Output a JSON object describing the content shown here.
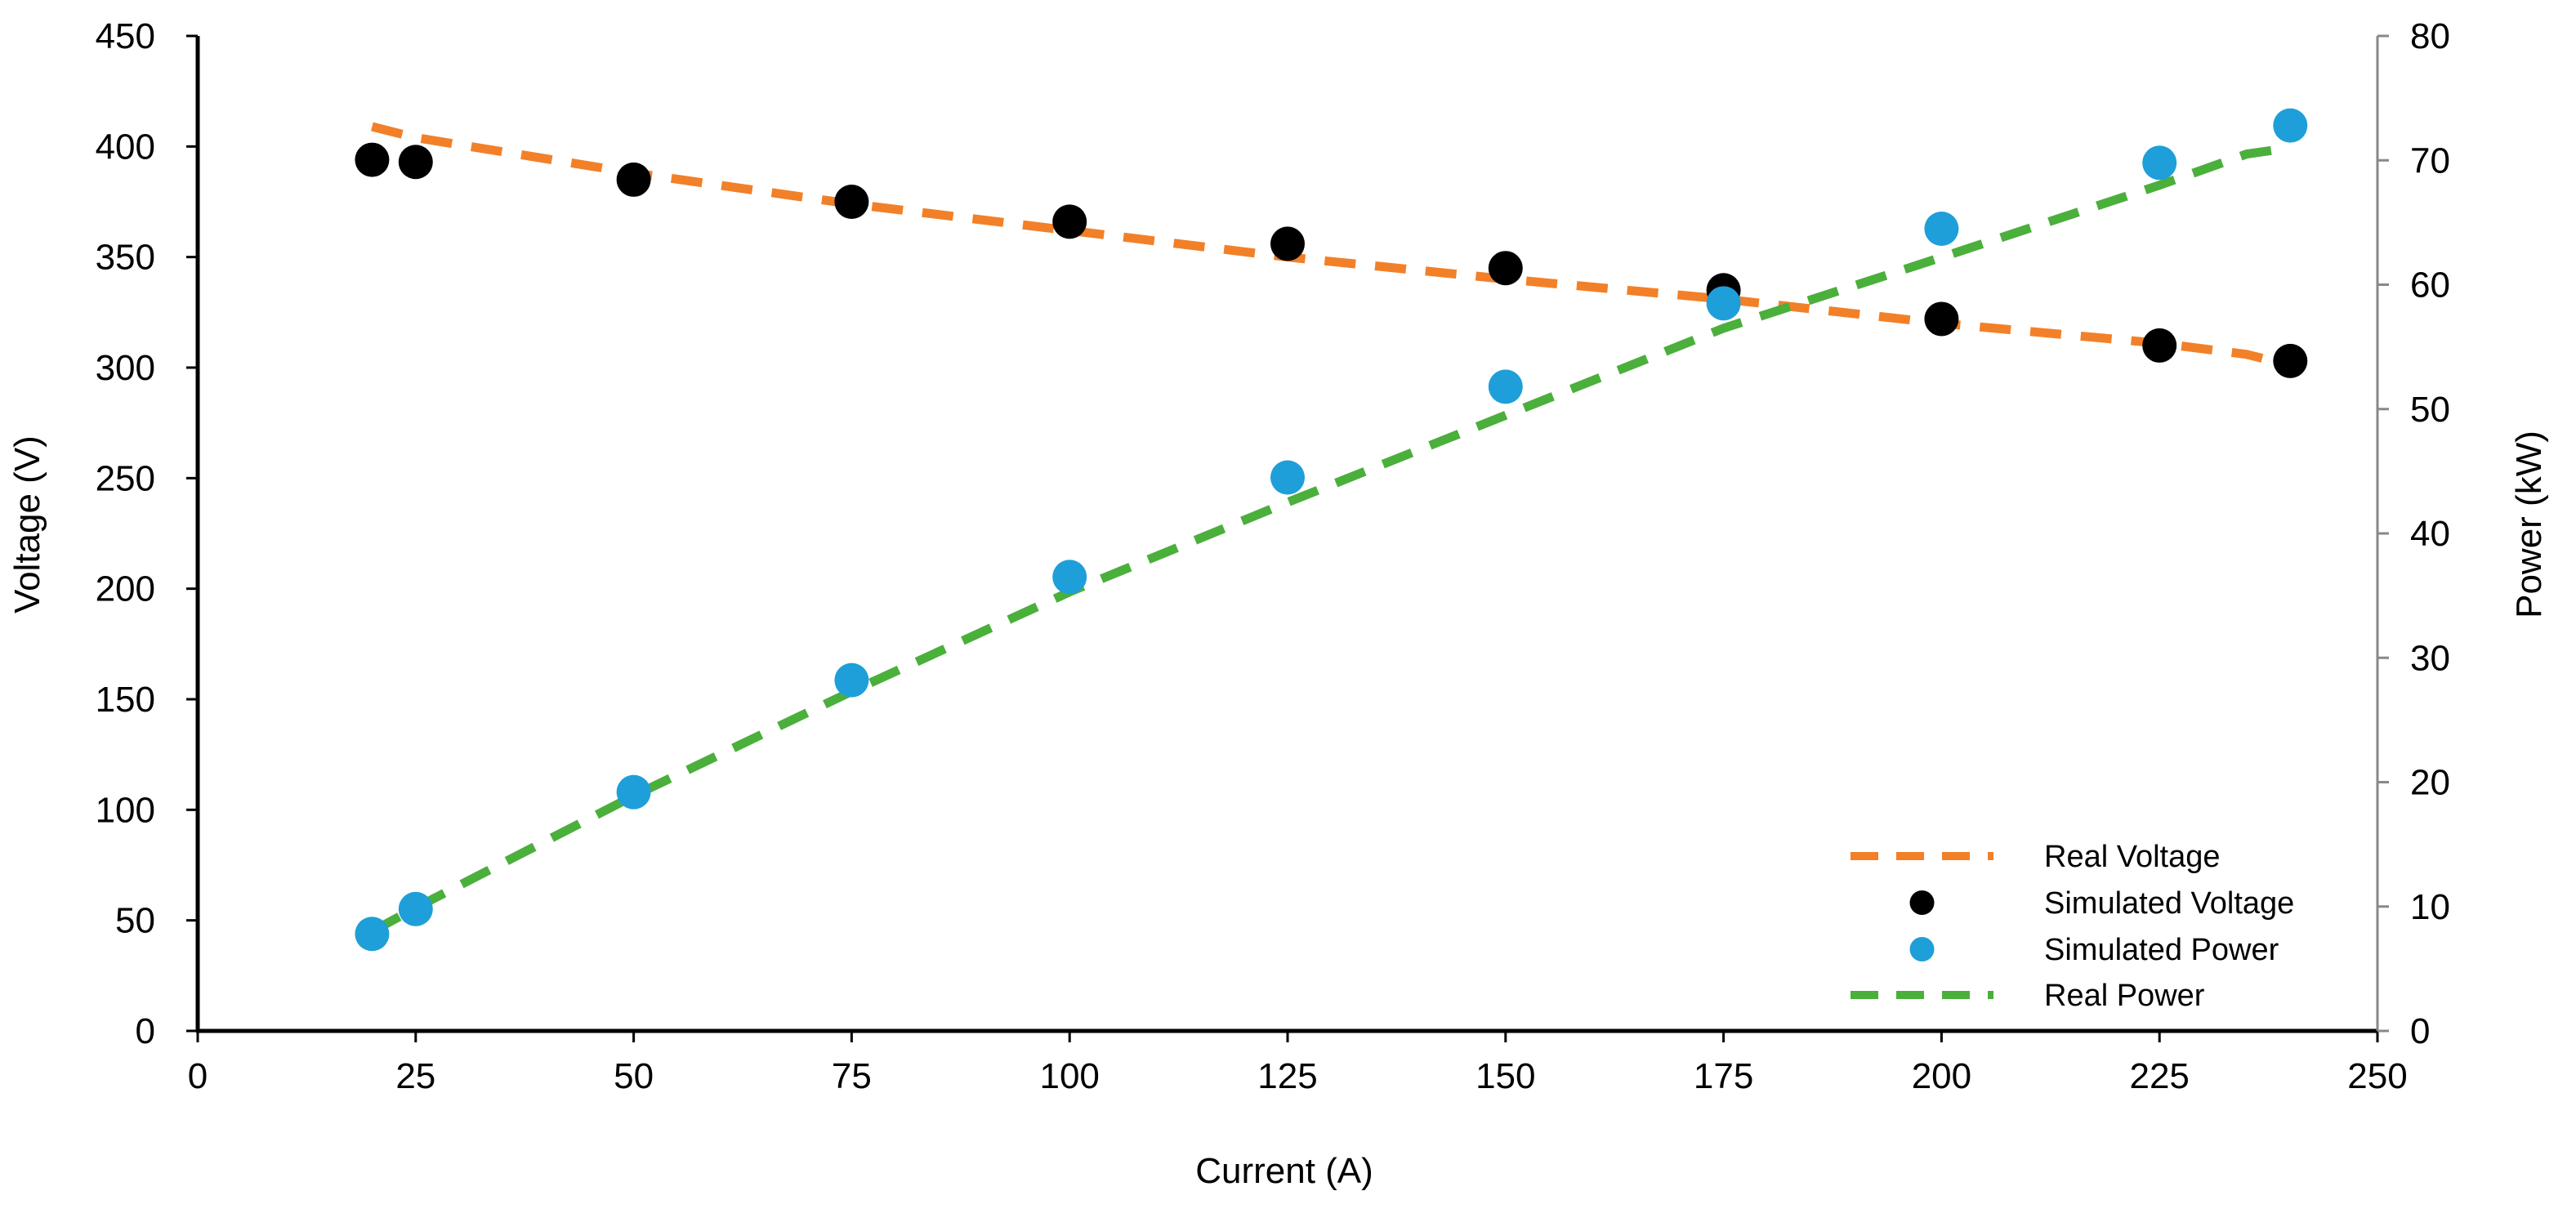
{
  "chart_data": {
    "type": "scatter",
    "title": "",
    "xlabel": "Current (A)",
    "ylabel_left": "Voltage (V)",
    "ylabel_right": "Power (kW)",
    "xlim": [
      0,
      250
    ],
    "xticks": [
      0,
      25,
      50,
      75,
      100,
      125,
      150,
      175,
      200,
      225,
      250
    ],
    "ylim_left": [
      0,
      450
    ],
    "yticks_left": [
      0,
      50,
      100,
      150,
      200,
      250,
      300,
      350,
      400,
      450
    ],
    "ylim_right": [
      0,
      80
    ],
    "yticks_right": [
      0,
      10,
      20,
      30,
      40,
      50,
      60,
      70,
      80
    ],
    "grid": false,
    "legend_position": "bottom-right",
    "series": [
      {
        "name": "Real Voltage",
        "kind": "dashed-line",
        "axis": "left",
        "color": "#F28028",
        "x": [
          20,
          25,
          50,
          75,
          100,
          125,
          150,
          175,
          200,
          225,
          235,
          240
        ],
        "y": [
          409,
          404,
          388,
          374,
          362,
          350,
          340,
          331,
          320,
          311,
          306,
          301
        ]
      },
      {
        "name": "Simulated Voltage",
        "kind": "markers",
        "axis": "left",
        "color": "#000000",
        "x": [
          20,
          25,
          50,
          75,
          100,
          125,
          150,
          175,
          200,
          225,
          240
        ],
        "y": [
          394,
          393,
          385,
          375,
          366,
          356,
          345,
          335,
          322,
          310,
          303
        ]
      },
      {
        "name": "Simulated Power",
        "kind": "markers",
        "axis": "right",
        "color": "#1E9FD9",
        "x": [
          20,
          25,
          50,
          75,
          100,
          125,
          150,
          175,
          200,
          225,
          240
        ],
        "y": [
          7.8,
          9.8,
          19.2,
          28.2,
          36.5,
          44.5,
          51.8,
          58.5,
          64.5,
          69.8,
          72.8
        ]
      },
      {
        "name": "Real Power",
        "kind": "dashed-line",
        "axis": "right",
        "color": "#4BAF3C",
        "x": [
          20,
          25,
          50,
          75,
          100,
          125,
          150,
          175,
          200,
          225,
          235,
          240
        ],
        "y": [
          8,
          9.9,
          18.9,
          27.3,
          35.3,
          42.5,
          49.5,
          56.5,
          62.2,
          68,
          70.5,
          71
        ]
      }
    ],
    "legend_order": [
      "Real Voltage",
      "Simulated Voltage",
      "Simulated Power",
      "Real Power"
    ]
  }
}
